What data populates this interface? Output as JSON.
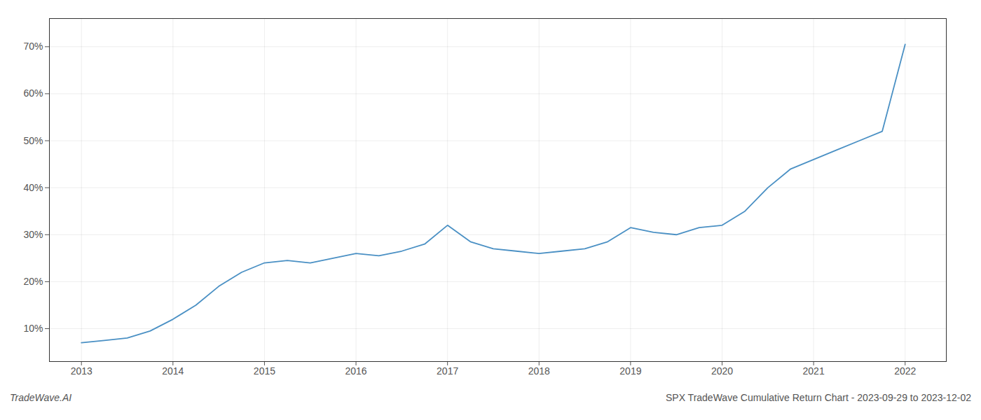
{
  "chart_data": {
    "type": "line",
    "x": [
      2013.0,
      2013.25,
      2013.5,
      2013.75,
      2014.0,
      2014.25,
      2014.5,
      2014.75,
      2015.0,
      2015.25,
      2015.5,
      2015.75,
      2016.0,
      2016.25,
      2016.5,
      2016.75,
      2017.0,
      2017.25,
      2017.5,
      2017.75,
      2018.0,
      2018.25,
      2018.5,
      2018.75,
      2019.0,
      2019.25,
      2019.5,
      2019.75,
      2020.0,
      2020.25,
      2020.5,
      2020.75,
      2021.0,
      2021.25,
      2021.5,
      2021.75,
      2022.0
    ],
    "values": [
      7.0,
      7.5,
      8.0,
      9.5,
      12.0,
      15.0,
      19.0,
      22.0,
      24.0,
      24.5,
      24.0,
      25.0,
      26.0,
      25.5,
      26.5,
      28.0,
      32.0,
      28.5,
      27.0,
      26.5,
      26.0,
      26.5,
      27.0,
      28.5,
      31.5,
      30.5,
      30.0,
      31.5,
      32.0,
      35.0,
      40.0,
      44.0,
      46.0,
      48.0,
      50.0,
      52.0,
      70.5
    ],
    "color": "#4a90c4",
    "xlim": [
      2012.65,
      2022.45
    ],
    "xticks": [
      2013,
      2014,
      2015,
      2016,
      2017,
      2018,
      2019,
      2020,
      2021,
      2022
    ],
    "ylim": [
      3,
      76
    ],
    "yticks": [
      {
        "value": 10,
        "label": "10%"
      },
      {
        "value": 20,
        "label": "20%"
      },
      {
        "value": 30,
        "label": "30%"
      },
      {
        "value": 40,
        "label": "40%"
      },
      {
        "value": 50,
        "label": "50%"
      },
      {
        "value": 60,
        "label": "60%"
      },
      {
        "value": 70,
        "label": "70%"
      }
    ],
    "grid": true,
    "annotations": [
      "TradeWave.AI",
      "SPX TradeWave Cumulative Return Chart - 2023-09-29 to 2023-12-02"
    ]
  }
}
